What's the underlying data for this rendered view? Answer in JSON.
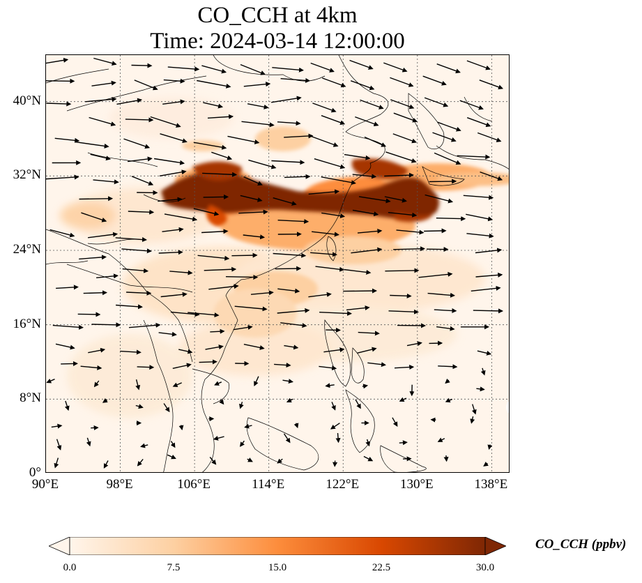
{
  "title": {
    "line1": "CO_CCH at 4km",
    "line2": "Time: 2024-03-14 12:00:00"
  },
  "map": {
    "extent": {
      "lon": [
        90,
        140
      ],
      "lat": [
        0,
        45
      ]
    },
    "x_ticks": [
      {
        "value": 90,
        "label": "90°E"
      },
      {
        "value": 98,
        "label": "98°E"
      },
      {
        "value": 106,
        "label": "106°E"
      },
      {
        "value": 114,
        "label": "114°E"
      },
      {
        "value": 122,
        "label": "122°E"
      },
      {
        "value": 130,
        "label": "130°E"
      },
      {
        "value": 138,
        "label": "138°E"
      }
    ],
    "y_ticks": [
      {
        "value": 0,
        "label": "0°"
      },
      {
        "value": 8,
        "label": "8°N"
      },
      {
        "value": 16,
        "label": "16°N"
      },
      {
        "value": 24,
        "label": "24°N"
      },
      {
        "value": 32,
        "label": "32°N"
      },
      {
        "value": 40,
        "label": "40°N"
      }
    ],
    "gridlines": true,
    "plume_cores": [
      {
        "lon_range": [
          103,
          128
        ],
        "lat_range": [
          28,
          31
        ],
        "value": 30
      },
      {
        "lon_range": [
          107,
          112
        ],
        "lat_range": [
          31,
          34
        ],
        "value": 28
      },
      {
        "lon_range": [
          121,
          127
        ],
        "lat_range": [
          31,
          33
        ],
        "value": 26
      }
    ],
    "wind_field": "westerly winds, stronger in mid-latitudes"
  },
  "colorbar": {
    "min": 0.0,
    "max": 30.0,
    "ticks": [
      "0.0",
      "7.5",
      "15.0",
      "22.5",
      "30.0"
    ],
    "label": "CO_CCH (ppbv)",
    "colormap": [
      "#fff5eb",
      "#fdd0a2",
      "#fd8d3c",
      "#d94801",
      "#7f2704"
    ]
  }
}
